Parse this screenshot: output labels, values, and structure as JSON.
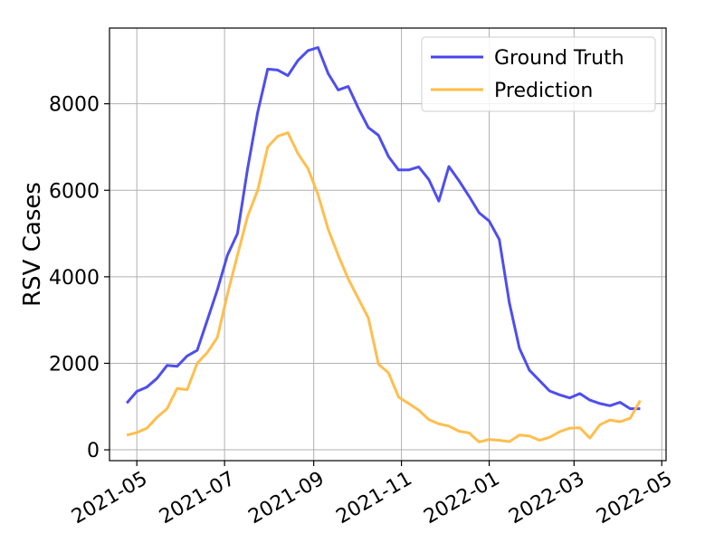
{
  "chart_data": {
    "type": "line",
    "title": "",
    "xlabel": "",
    "ylabel": "RSV Cases",
    "grid": true,
    "legend_position": "top-right",
    "xlim": [
      "2021-04-12",
      "2022-05-04"
    ],
    "ylim": [
      -250,
      9750
    ],
    "xticks": [
      "2021-05-01",
      "2021-07-01",
      "2021-09-01",
      "2021-11-01",
      "2022-01-01",
      "2022-03-01",
      "2022-05-01"
    ],
    "xtick_labels": [
      "2021-05",
      "2021-07",
      "2021-09",
      "2021-11",
      "2022-01",
      "2022-03",
      "2022-05"
    ],
    "yticks": [
      0,
      2000,
      4000,
      6000,
      8000
    ],
    "ytick_labels": [
      "0",
      "2000",
      "4000",
      "6000",
      "8000"
    ],
    "x": [
      "2021-04-24",
      "2021-05-01",
      "2021-05-08",
      "2021-05-15",
      "2021-05-22",
      "2021-05-29",
      "2021-06-05",
      "2021-06-12",
      "2021-06-19",
      "2021-06-26",
      "2021-07-03",
      "2021-07-10",
      "2021-07-17",
      "2021-07-24",
      "2021-07-31",
      "2021-08-07",
      "2021-08-14",
      "2021-08-21",
      "2021-08-28",
      "2021-09-04",
      "2021-09-11",
      "2021-09-18",
      "2021-09-25",
      "2021-10-02",
      "2021-10-09",
      "2021-10-16",
      "2021-10-23",
      "2021-10-30",
      "2021-11-06",
      "2021-11-13",
      "2021-11-20",
      "2021-11-27",
      "2021-12-04",
      "2021-12-11",
      "2021-12-18",
      "2021-12-25",
      "2022-01-01",
      "2022-01-08",
      "2022-01-15",
      "2022-01-22",
      "2022-01-29",
      "2022-02-05",
      "2022-02-12",
      "2022-02-19",
      "2022-02-26",
      "2022-03-05",
      "2022-03-12",
      "2022-03-19",
      "2022-03-26",
      "2022-04-02",
      "2022-04-09",
      "2022-04-16"
    ],
    "series": [
      {
        "name": "Ground Truth",
        "color": "#4444ee",
        "values": [
          1080,
          1350,
          1450,
          1650,
          1950,
          1930,
          2170,
          2300,
          3000,
          3700,
          4500,
          5000,
          6500,
          7800,
          8800,
          8780,
          8650,
          9000,
          9230,
          9300,
          8700,
          8320,
          8400,
          7900,
          7450,
          7270,
          6780,
          6470,
          6470,
          6540,
          6250,
          5750,
          6550,
          6220,
          5860,
          5480,
          5290,
          4860,
          3400,
          2350,
          1840,
          1600,
          1360,
          1270,
          1200,
          1300,
          1150,
          1070,
          1020,
          1100,
          950,
          950
        ]
      },
      {
        "name": "Prediction",
        "color": "#ffbb44",
        "values": [
          340,
          400,
          500,
          750,
          950,
          1420,
          1390,
          2000,
          2250,
          2600,
          3600,
          4500,
          5400,
          6000,
          7000,
          7250,
          7330,
          6850,
          6500,
          5900,
          5100,
          4500,
          3950,
          3500,
          3050,
          1980,
          1780,
          1220,
          1070,
          920,
          700,
          600,
          550,
          430,
          390,
          180,
          240,
          220,
          190,
          340,
          320,
          220,
          290,
          420,
          500,
          510,
          270,
          580,
          690,
          650,
          730,
          1140
        ]
      }
    ]
  }
}
